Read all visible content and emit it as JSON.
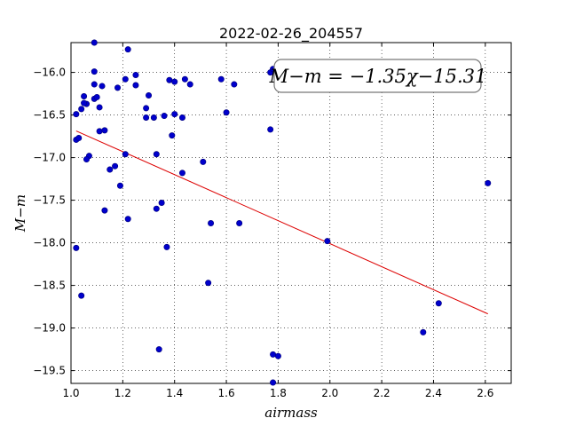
{
  "chart_data": {
    "type": "scatter",
    "title": "2022-02-26_204557",
    "xlabel": "airmass",
    "ylabel": "M−m",
    "xlim": [
      1.0,
      2.7
    ],
    "ylim": [
      -19.65,
      -15.65
    ],
    "x_ticks": [
      "1.0",
      "1.2",
      "1.4",
      "1.6",
      "1.8",
      "2.0",
      "2.2",
      "2.4",
      "2.6"
    ],
    "x_tick_values": [
      1.0,
      1.2,
      1.4,
      1.6,
      1.8,
      2.0,
      2.2,
      2.4,
      2.6
    ],
    "y_ticks": [
      "−16.0",
      "−16.5",
      "−17.0",
      "−17.5",
      "−18.0",
      "−18.5",
      "−19.0",
      "−19.5"
    ],
    "y_tick_values": [
      -16.0,
      -16.5,
      -17.0,
      -17.5,
      -18.0,
      -18.5,
      -19.0,
      -19.5
    ],
    "grid": true,
    "annotation": "M−m = −1.35χ−15.31",
    "annotation_position": "top-right",
    "point_color": "#0000cc",
    "fit_color": "#dd0000",
    "fit": {
      "slope": -1.35,
      "intercept": -15.31,
      "x_range": [
        1.02,
        2.61
      ]
    },
    "points": [
      [
        1.09,
        -15.65
      ],
      [
        1.22,
        -15.73
      ],
      [
        1.09,
        -15.99
      ],
      [
        1.25,
        -16.03
      ],
      [
        1.21,
        -16.08
      ],
      [
        1.38,
        -16.09
      ],
      [
        1.44,
        -16.08
      ],
      [
        1.58,
        -16.08
      ],
      [
        1.4,
        -16.11
      ],
      [
        1.63,
        -16.14
      ],
      [
        1.46,
        -16.14
      ],
      [
        1.25,
        -16.15
      ],
      [
        1.09,
        -16.14
      ],
      [
        1.12,
        -16.16
      ],
      [
        1.18,
        -16.18
      ],
      [
        1.77,
        -16.0
      ],
      [
        1.78,
        -15.96
      ],
      [
        1.05,
        -16.28
      ],
      [
        1.09,
        -16.31
      ],
      [
        1.1,
        -16.29
      ],
      [
        1.3,
        -16.27
      ],
      [
        1.06,
        -16.37
      ],
      [
        1.05,
        -16.36
      ],
      [
        1.04,
        -16.43
      ],
      [
        1.11,
        -16.41
      ],
      [
        1.02,
        -16.49
      ],
      [
        1.29,
        -16.42
      ],
      [
        1.6,
        -16.47
      ],
      [
        1.29,
        -16.53
      ],
      [
        1.32,
        -16.53
      ],
      [
        1.36,
        -16.51
      ],
      [
        1.4,
        -16.49
      ],
      [
        1.43,
        -16.53
      ],
      [
        1.11,
        -16.69
      ],
      [
        1.13,
        -16.68
      ],
      [
        1.77,
        -16.67
      ],
      [
        1.39,
        -16.74
      ],
      [
        1.02,
        -16.79
      ],
      [
        1.03,
        -16.77
      ],
      [
        1.21,
        -16.96
      ],
      [
        1.33,
        -16.96
      ],
      [
        1.07,
        -16.98
      ],
      [
        1.06,
        -17.02
      ],
      [
        1.51,
        -17.05
      ],
      [
        1.17,
        -17.1
      ],
      [
        1.15,
        -17.14
      ],
      [
        1.43,
        -17.18
      ],
      [
        1.19,
        -17.33
      ],
      [
        1.35,
        -17.53
      ],
      [
        1.33,
        -17.6
      ],
      [
        1.13,
        -17.62
      ],
      [
        1.22,
        -17.72
      ],
      [
        1.54,
        -17.77
      ],
      [
        1.65,
        -17.77
      ],
      [
        1.99,
        -17.98
      ],
      [
        1.02,
        -18.06
      ],
      [
        1.37,
        -18.05
      ],
      [
        1.53,
        -18.47
      ],
      [
        1.04,
        -18.62
      ],
      [
        2.42,
        -18.71
      ],
      [
        2.36,
        -19.05
      ],
      [
        1.34,
        -19.25
      ],
      [
        1.78,
        -19.31
      ],
      [
        1.8,
        -19.33
      ],
      [
        1.78,
        -19.64
      ],
      [
        2.61,
        -17.3
      ]
    ]
  }
}
